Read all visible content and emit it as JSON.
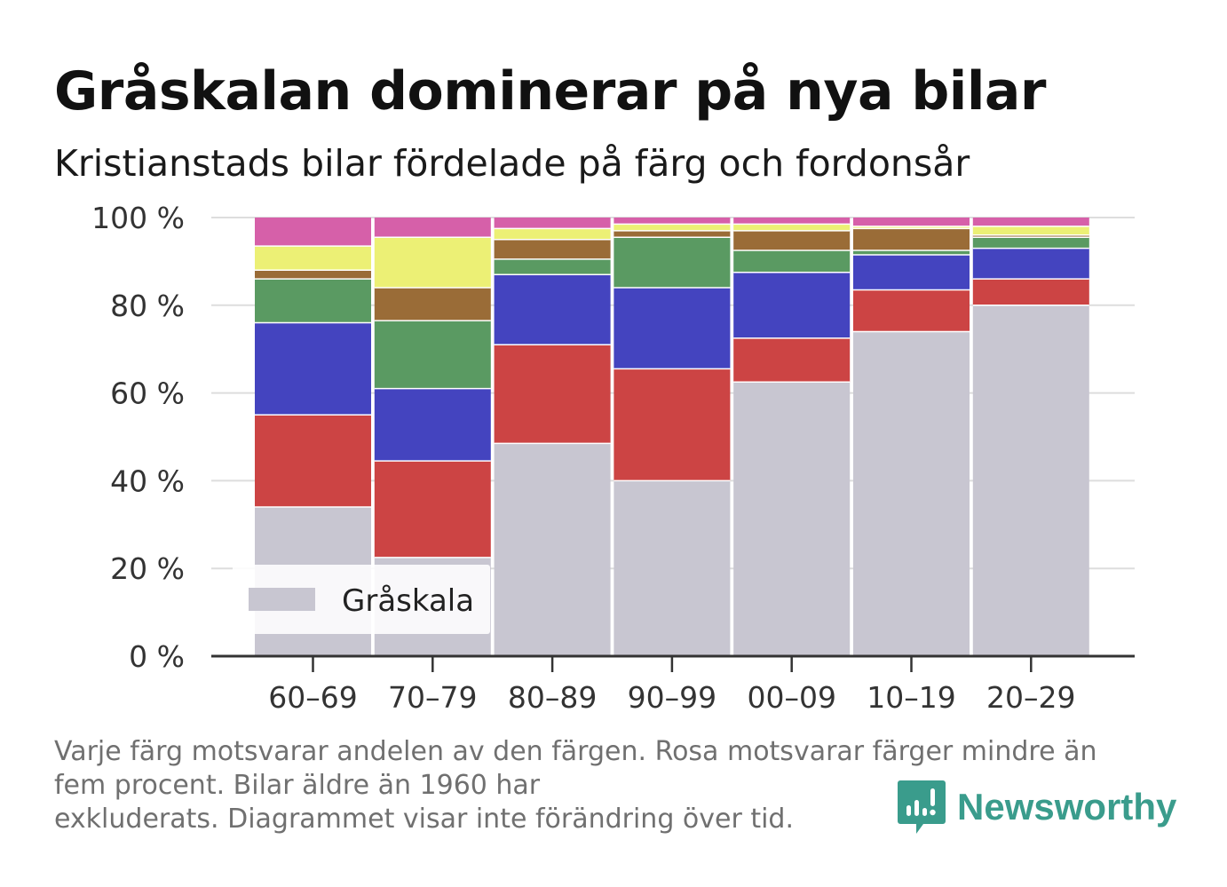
{
  "title": "Gråskalan dominerar på nya bilar",
  "subtitle": "Kristianstads bilar fördelade på färg och fordonsår",
  "footnote": {
    "line1": "Varje färg motsvarar andelen av den färgen. Rosa motsvarar färger mindre än",
    "line2": "fem procent. Bilar äldre än 1960 har",
    "line3": "exkluderats. Diagrammet visar inte förändring över tid."
  },
  "brand": {
    "name": "Newsworthy",
    "icon": "newsworthy-logo-icon",
    "color": "#3a9c8c"
  },
  "chart_data": {
    "type": "bar",
    "stacked": true,
    "normalized_percent": true,
    "categories": [
      "60–69",
      "70–79",
      "80–89",
      "90–99",
      "00–09",
      "10–19",
      "20–29"
    ],
    "ylim": [
      0,
      100
    ],
    "yticks": [
      0,
      20,
      40,
      60,
      80,
      100
    ],
    "ytick_suffix": " %",
    "grid": true,
    "legend": {
      "placement": "bottom-left",
      "entries": [
        "Gråskala"
      ]
    },
    "series": [
      {
        "name": "Gråskala",
        "color": "#c8c6d1",
        "values": [
          34,
          22.5,
          48.5,
          40,
          62.5,
          74,
          80
        ]
      },
      {
        "color": "#cc4444",
        "values": [
          21,
          22,
          22.5,
          25.5,
          10,
          9.5,
          6
        ]
      },
      {
        "color": "#4444bf",
        "values": [
          21,
          16.5,
          16,
          18.5,
          15,
          8,
          7
        ]
      },
      {
        "color": "#5a9a62",
        "values": [
          10,
          15.5,
          3.5,
          11.5,
          5,
          1,
          2.5
        ]
      },
      {
        "color": "#9a6c37",
        "values": [
          2,
          7.5,
          4.5,
          1.5,
          4.5,
          5,
          0.5
        ]
      },
      {
        "color": "#ecf075",
        "values": [
          5.5,
          11.5,
          2.5,
          1.5,
          1.5,
          0.5,
          2
        ]
      },
      {
        "color": "#d660a9",
        "values": [
          6.5,
          4.5,
          2.5,
          1.5,
          1.5,
          2,
          2
        ]
      }
    ]
  }
}
